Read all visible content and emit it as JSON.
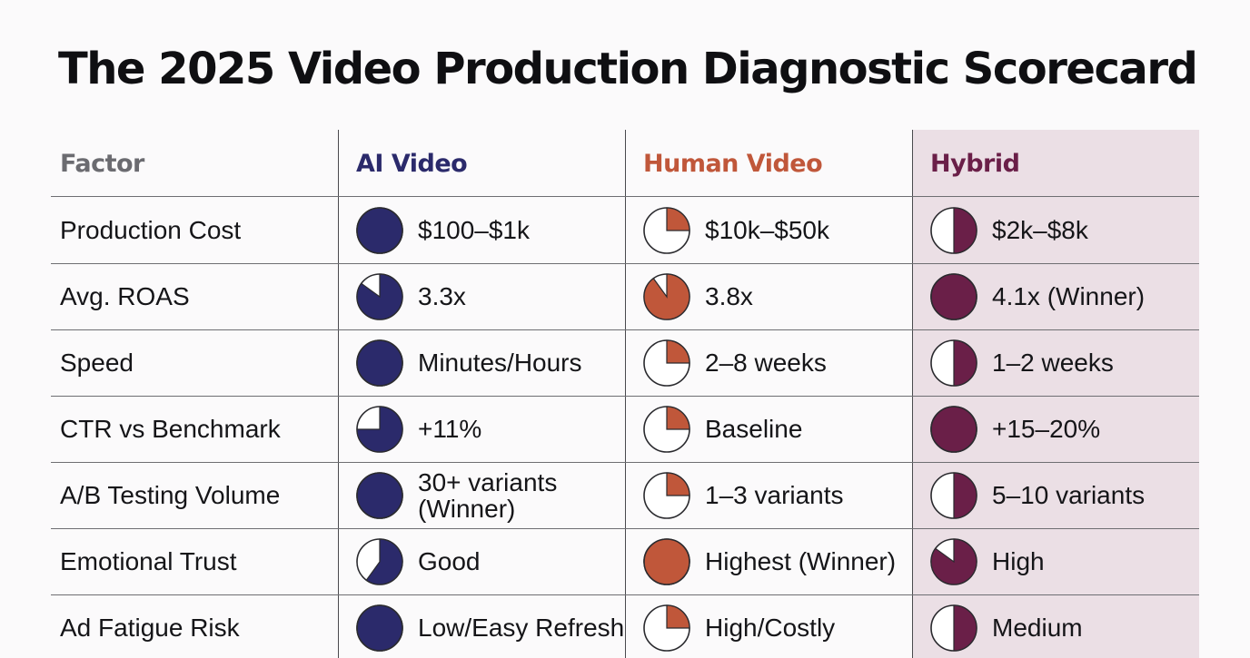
{
  "title": "The 2025 Video Production Diagnostic Scorecard",
  "colors": {
    "ai": "#2b2a6b",
    "human": "#c0573a",
    "hybrid": "#6a1f48",
    "factor_header": "#6b6b70",
    "hybrid_column_bg": "#ebdfe5"
  },
  "columns": [
    {
      "key": "factor",
      "label": "Factor"
    },
    {
      "key": "ai",
      "label": "AI Video"
    },
    {
      "key": "human",
      "label": "Human Video"
    },
    {
      "key": "hybrid",
      "label": "Hybrid"
    }
  ],
  "rows": [
    {
      "factor": "Production Cost",
      "ai": {
        "text": "$100–$1k",
        "fill": 1
      },
      "human": {
        "text": "$10k–$50k",
        "fill": 0.25
      },
      "hybrid": {
        "text": "$2k–$8k",
        "fill": 0.5
      }
    },
    {
      "factor": "Avg. ROAS",
      "ai": {
        "text": "3.3x",
        "fill": 0.85
      },
      "human": {
        "text": "3.8x",
        "fill": 0.9
      },
      "hybrid": {
        "text": "4.1x (Winner)",
        "fill": 1
      }
    },
    {
      "factor": "Speed",
      "ai": {
        "text": "Minutes/Hours",
        "fill": 1
      },
      "human": {
        "text": "2–8 weeks",
        "fill": 0.25
      },
      "hybrid": {
        "text": "1–2 weeks",
        "fill": 0.5
      }
    },
    {
      "factor": "CTR vs Benchmark",
      "ai": {
        "text": "+11%",
        "fill": 0.75
      },
      "human": {
        "text": "Baseline",
        "fill": 0.25
      },
      "hybrid": {
        "text": "+15–20%",
        "fill": 1
      }
    },
    {
      "factor": "A/B Testing Volume",
      "ai": {
        "text": "30+ variants\n(Winner)",
        "fill": 1
      },
      "human": {
        "text": "1–3 variants",
        "fill": 0.25
      },
      "hybrid": {
        "text": "5–10 variants",
        "fill": 0.5
      }
    },
    {
      "factor": "Emotional Trust",
      "ai": {
        "text": "Good",
        "fill": 0.6
      },
      "human": {
        "text": "Highest (Winner)",
        "fill": 1
      },
      "hybrid": {
        "text": "High",
        "fill": 0.85
      }
    },
    {
      "factor": "Ad Fatigue Risk",
      "ai": {
        "text": "Low/Easy Refresh",
        "fill": 1
      },
      "human": {
        "text": "High/Costly",
        "fill": 0.25
      },
      "hybrid": {
        "text": "Medium",
        "fill": 0.5
      }
    }
  ]
}
